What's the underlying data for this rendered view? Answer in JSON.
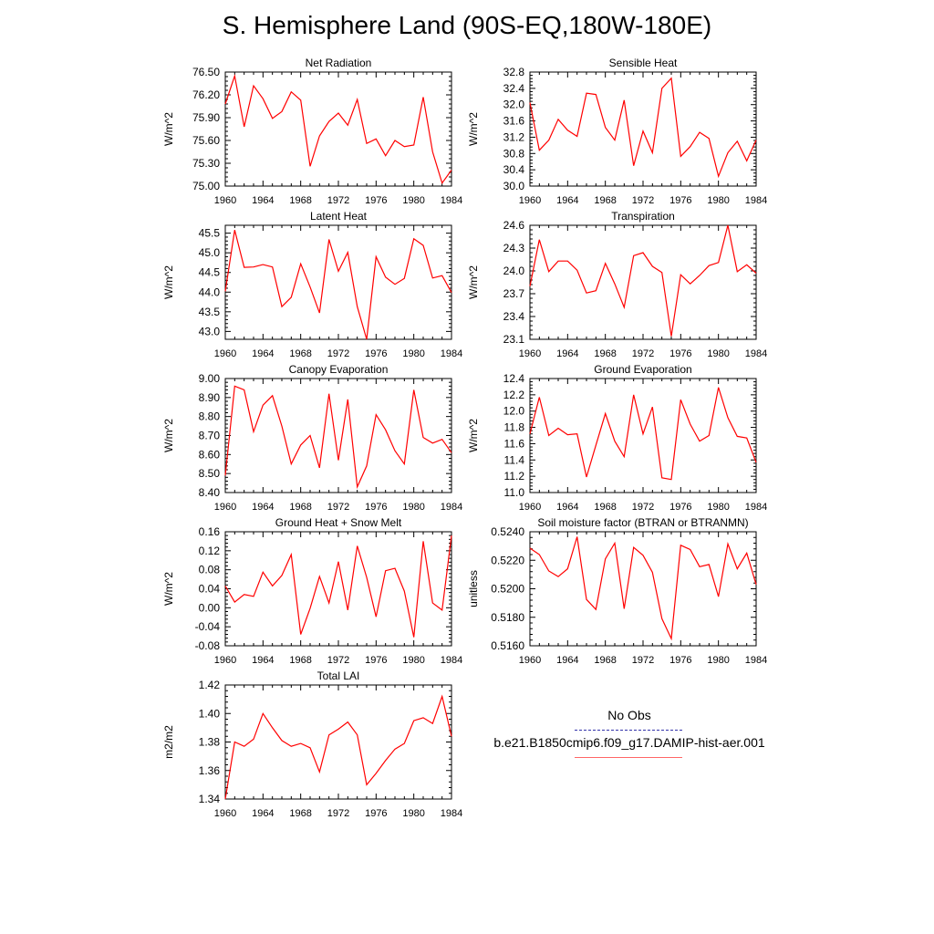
{
  "title": "S. Hemisphere Land (90S-EQ,180W-180E)",
  "colors": {
    "model": "#ff0000",
    "obs": "#3333aa"
  },
  "legend": [
    {
      "label": "No Obs",
      "style": "dashed",
      "color": "#3333aa"
    },
    {
      "label": "b.e21.B1850cmip6.f09_g17.DAMIP-hist-aer.001",
      "style": "solid",
      "color": "#ff0000"
    }
  ],
  "chart_data": [
    {
      "type": "line",
      "title": "Net Radiation",
      "ylabel": "W/m^2",
      "xlim": [
        1960,
        1984
      ],
      "ylim": [
        75.0,
        76.5
      ],
      "xticks": [
        "1960",
        "1964",
        "1968",
        "1972",
        "1976",
        "1980",
        "1984"
      ],
      "yticks": [
        "75.00",
        "75.30",
        "75.60",
        "75.90",
        "76.20",
        "76.50"
      ],
      "x": [
        1960,
        1961,
        1962,
        1963,
        1964,
        1965,
        1966,
        1967,
        1968,
        1969,
        1970,
        1971,
        1972,
        1973,
        1974,
        1975,
        1976,
        1977,
        1978,
        1979,
        1980,
        1981,
        1982,
        1983,
        1984
      ],
      "series": [
        {
          "name": "b.e21.B1850cmip6.f09_g17.DAMIP-hist-aer.001",
          "values": [
            76.08,
            76.45,
            75.78,
            76.32,
            76.15,
            75.89,
            75.98,
            76.24,
            76.13,
            75.26,
            75.66,
            75.85,
            75.96,
            75.8,
            76.14,
            75.56,
            75.62,
            75.4,
            75.6,
            75.52,
            75.54,
            76.17,
            75.45,
            75.04,
            75.21
          ]
        }
      ]
    },
    {
      "type": "line",
      "title": "Sensible Heat",
      "ylabel": "W/m^2",
      "xlim": [
        1960,
        1984
      ],
      "ylim": [
        30.0,
        32.8
      ],
      "xticks": [
        "1960",
        "1964",
        "1968",
        "1972",
        "1976",
        "1980",
        "1984"
      ],
      "yticks": [
        "30.0",
        "30.4",
        "30.8",
        "31.2",
        "31.6",
        "32.0",
        "32.4",
        "32.8"
      ],
      "x": [
        1960,
        1961,
        1962,
        1963,
        1964,
        1965,
        1966,
        1967,
        1968,
        1969,
        1970,
        1971,
        1972,
        1973,
        1974,
        1975,
        1976,
        1977,
        1978,
        1979,
        1980,
        1981,
        1982,
        1983,
        1984
      ],
      "series": [
        {
          "name": "b.e21.B1850cmip6.f09_g17.DAMIP-hist-aer.001",
          "values": [
            32.05,
            30.88,
            31.13,
            31.64,
            31.37,
            31.22,
            32.28,
            32.25,
            31.44,
            31.13,
            32.11,
            30.5,
            31.35,
            30.82,
            32.4,
            32.65,
            30.73,
            30.97,
            31.32,
            31.17,
            30.24,
            30.82,
            31.1,
            30.62,
            31.13
          ]
        }
      ]
    },
    {
      "type": "line",
      "title": "Latent Heat",
      "ylabel": "W/m^2",
      "xlim": [
        1960,
        1984
      ],
      "ylim": [
        42.8,
        45.7
      ],
      "xticks": [
        "1960",
        "1964",
        "1968",
        "1972",
        "1976",
        "1980",
        "1984"
      ],
      "yticks": [
        "43.0",
        "43.5",
        "44.0",
        "44.5",
        "45.0",
        "45.5"
      ],
      "x": [
        1960,
        1961,
        1962,
        1963,
        1964,
        1965,
        1966,
        1967,
        1968,
        1969,
        1970,
        1971,
        1972,
        1973,
        1974,
        1975,
        1976,
        1977,
        1978,
        1979,
        1980,
        1981,
        1982,
        1983,
        1984
      ],
      "series": [
        {
          "name": "b.e21.B1850cmip6.f09_g17.DAMIP-hist-aer.001",
          "values": [
            44.02,
            45.58,
            44.63,
            44.64,
            44.7,
            44.64,
            43.63,
            43.87,
            44.72,
            44.13,
            43.47,
            45.34,
            44.53,
            45.01,
            43.63,
            42.8,
            44.9,
            44.38,
            44.2,
            44.35,
            45.36,
            45.19,
            44.36,
            44.42,
            43.99
          ]
        }
      ]
    },
    {
      "type": "line",
      "title": "Transpiration",
      "ylabel": "W/m^2",
      "xlim": [
        1960,
        1984
      ],
      "ylim": [
        23.1,
        24.6
      ],
      "xticks": [
        "1960",
        "1964",
        "1968",
        "1972",
        "1976",
        "1980",
        "1984"
      ],
      "yticks": [
        "23.1",
        "23.4",
        "23.7",
        "24.0",
        "24.3",
        "24.6"
      ],
      "x": [
        1960,
        1961,
        1962,
        1963,
        1964,
        1965,
        1966,
        1967,
        1968,
        1969,
        1970,
        1971,
        1972,
        1973,
        1974,
        1975,
        1976,
        1977,
        1978,
        1979,
        1980,
        1981,
        1982,
        1983,
        1984
      ],
      "series": [
        {
          "name": "b.e21.B1850cmip6.f09_g17.DAMIP-hist-aer.001",
          "values": [
            23.8,
            24.41,
            23.99,
            24.13,
            24.13,
            24.01,
            23.71,
            23.74,
            24.1,
            23.83,
            23.52,
            24.2,
            24.24,
            24.06,
            23.98,
            23.14,
            23.95,
            23.83,
            23.94,
            24.07,
            24.11,
            24.6,
            23.99,
            24.08,
            23.97
          ]
        }
      ]
    },
    {
      "type": "line",
      "title": "Canopy Evaporation",
      "ylabel": "W/m^2",
      "xlim": [
        1960,
        1984
      ],
      "ylim": [
        8.4,
        9.0
      ],
      "xticks": [
        "1960",
        "1964",
        "1968",
        "1972",
        "1976",
        "1980",
        "1984"
      ],
      "yticks": [
        "8.40",
        "8.50",
        "8.60",
        "8.70",
        "8.80",
        "8.90",
        "9.00"
      ],
      "x": [
        1960,
        1961,
        1962,
        1963,
        1964,
        1965,
        1966,
        1967,
        1968,
        1969,
        1970,
        1971,
        1972,
        1973,
        1974,
        1975,
        1976,
        1977,
        1978,
        1979,
        1980,
        1981,
        1982,
        1983,
        1984
      ],
      "series": [
        {
          "name": "b.e21.B1850cmip6.f09_g17.DAMIP-hist-aer.001",
          "values": [
            8.49,
            8.96,
            8.94,
            8.72,
            8.86,
            8.91,
            8.75,
            8.55,
            8.65,
            8.7,
            8.53,
            8.92,
            8.57,
            8.89,
            8.43,
            8.54,
            8.81,
            8.73,
            8.62,
            8.55,
            8.94,
            8.69,
            8.66,
            8.68,
            8.61
          ]
        }
      ]
    },
    {
      "type": "line",
      "title": "Ground Evaporation",
      "ylabel": "W/m^2",
      "xlim": [
        1960,
        1984
      ],
      "ylim": [
        11.0,
        12.4
      ],
      "xticks": [
        "1960",
        "1964",
        "1968",
        "1972",
        "1976",
        "1980",
        "1984"
      ],
      "yticks": [
        "11.0",
        "11.2",
        "11.4",
        "11.6",
        "11.8",
        "12.0",
        "12.2",
        "12.4"
      ],
      "x": [
        1960,
        1961,
        1962,
        1963,
        1964,
        1965,
        1966,
        1967,
        1968,
        1969,
        1970,
        1971,
        1972,
        1973,
        1974,
        1975,
        1976,
        1977,
        1978,
        1979,
        1980,
        1981,
        1982,
        1983,
        1984
      ],
      "series": [
        {
          "name": "b.e21.B1850cmip6.f09_g17.DAMIP-hist-aer.001",
          "values": [
            11.72,
            12.17,
            11.7,
            11.79,
            11.71,
            11.72,
            11.19,
            11.58,
            11.97,
            11.63,
            11.44,
            12.2,
            11.72,
            12.05,
            11.18,
            11.16,
            12.14,
            11.84,
            11.63,
            11.7,
            12.29,
            11.92,
            11.69,
            11.67,
            11.37
          ]
        }
      ]
    },
    {
      "type": "line",
      "title": "Ground Heat + Snow Melt",
      "ylabel": "W/m^2",
      "xlim": [
        1960,
        1984
      ],
      "ylim": [
        -0.08,
        0.16
      ],
      "xticks": [
        "1960",
        "1964",
        "1968",
        "1972",
        "1976",
        "1980",
        "1984"
      ],
      "yticks": [
        "-0.08",
        "-0.04",
        "0.00",
        "0.04",
        "0.08",
        "0.12",
        "0.16"
      ],
      "x": [
        1960,
        1961,
        1962,
        1963,
        1964,
        1965,
        1966,
        1967,
        1968,
        1969,
        1970,
        1971,
        1972,
        1973,
        1974,
        1975,
        1976,
        1977,
        1978,
        1979,
        1980,
        1981,
        1982,
        1983,
        1984
      ],
      "series": [
        {
          "name": "b.e21.B1850cmip6.f09_g17.DAMIP-hist-aer.001",
          "values": [
            0.046,
            0.012,
            0.028,
            0.024,
            0.075,
            0.046,
            0.068,
            0.112,
            -0.056,
            -0.001,
            0.066,
            0.01,
            0.097,
            -0.005,
            0.13,
            0.064,
            -0.019,
            0.078,
            0.083,
            0.035,
            -0.062,
            0.14,
            0.01,
            -0.005,
            0.152
          ]
        }
      ]
    },
    {
      "type": "line",
      "title": "Soil moisture factor (BTRAN or BTRANMN)",
      "ylabel": "unitless",
      "xlim": [
        1960,
        1984
      ],
      "ylim": [
        0.516,
        0.524
      ],
      "xticks": [
        "1960",
        "1964",
        "1968",
        "1972",
        "1976",
        "1980",
        "1984"
      ],
      "yticks": [
        "0.5160",
        "0.5180",
        "0.5200",
        "0.5220",
        "0.5240"
      ],
      "x": [
        1960,
        1961,
        1962,
        1963,
        1964,
        1965,
        1966,
        1967,
        1968,
        1969,
        1970,
        1971,
        1972,
        1973,
        1974,
        1975,
        1976,
        1977,
        1978,
        1979,
        1980,
        1981,
        1982,
        1983,
        1984
      ],
      "series": [
        {
          "name": "b.e21.B1850cmip6.f09_g17.DAMIP-hist-aer.001",
          "values": [
            0.52285,
            0.5224,
            0.52125,
            0.52085,
            0.5214,
            0.52365,
            0.51925,
            0.51855,
            0.5221,
            0.5232,
            0.5186,
            0.5229,
            0.52235,
            0.52115,
            0.5179,
            0.5165,
            0.52305,
            0.52275,
            0.52155,
            0.5217,
            0.51945,
            0.52315,
            0.5214,
            0.5225,
            0.5203
          ]
        }
      ]
    },
    {
      "type": "line",
      "title": "Total LAI",
      "ylabel": "m2/m2",
      "xlim": [
        1960,
        1984
      ],
      "ylim": [
        1.34,
        1.42
      ],
      "xticks": [
        "1960",
        "1964",
        "1968",
        "1972",
        "1976",
        "1980",
        "1984"
      ],
      "yticks": [
        "1.34",
        "1.36",
        "1.38",
        "1.40",
        "1.42"
      ],
      "x": [
        1960,
        1961,
        1962,
        1963,
        1964,
        1965,
        1966,
        1967,
        1968,
        1969,
        1970,
        1971,
        1972,
        1973,
        1974,
        1975,
        1976,
        1977,
        1978,
        1979,
        1980,
        1981,
        1982,
        1983,
        1984
      ],
      "series": [
        {
          "name": "b.e21.B1850cmip6.f09_g17.DAMIP-hist-aer.001",
          "values": [
            1.34,
            1.38,
            1.377,
            1.382,
            1.4,
            1.39,
            1.381,
            1.377,
            1.379,
            1.376,
            1.359,
            1.385,
            1.389,
            1.394,
            1.385,
            1.35,
            1.358,
            1.367,
            1.375,
            1.379,
            1.395,
            1.397,
            1.393,
            1.412,
            1.384
          ]
        }
      ]
    }
  ]
}
